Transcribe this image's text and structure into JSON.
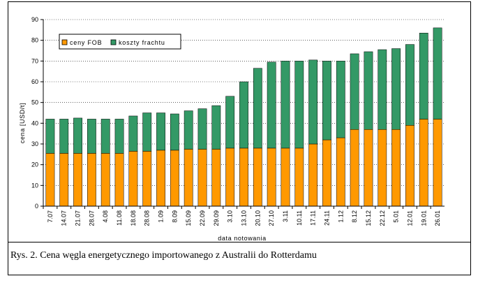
{
  "caption": "Rys. 2. Cena węgla energetycznego importowanego z Australii do Rotterdamu",
  "colors": {
    "fob": "#FF9900",
    "freight": "#339966",
    "grid": "#000000",
    "background": "#ffffff"
  },
  "chart_data": {
    "type": "bar",
    "stacked": true,
    "title": "",
    "xlabel": "data notowania",
    "ylabel": "cena [USD/t]",
    "ylim": [
      0,
      90
    ],
    "yticks": [
      0,
      10,
      20,
      30,
      40,
      50,
      60,
      70,
      80,
      90
    ],
    "grid": true,
    "legend_position": "top-left",
    "categories": [
      "7.07",
      "14.07",
      "21.07",
      "28.07",
      "4.08",
      "11.08",
      "18.08",
      "28.08",
      "1.09",
      "8.09",
      "15.09",
      "22.09",
      "29.09",
      "3.10",
      "13.10",
      "20.10",
      "27.10",
      "3.11",
      "10.11",
      "17.11",
      "24.11",
      "1.12",
      "8.12",
      "15.12",
      "22.12",
      "5.01",
      "12.01",
      "19.01",
      "26.01"
    ],
    "series": [
      {
        "name": "ceny FOB",
        "color": "#FF9900",
        "values": [
          25.5,
          25.5,
          25.5,
          25.5,
          25.5,
          25.5,
          26.5,
          26.5,
          27,
          27,
          27.5,
          27.5,
          27.5,
          28,
          28,
          28,
          28,
          28,
          28,
          30,
          32,
          33,
          37,
          37,
          37,
          37,
          39,
          42,
          42
        ]
      },
      {
        "name": "koszty frachtu",
        "color": "#339966",
        "values": [
          16.5,
          16.5,
          17,
          16.5,
          16.5,
          16.5,
          17,
          18.5,
          18,
          17.5,
          18.5,
          19.5,
          21,
          25,
          32,
          38.5,
          41.5,
          42,
          42,
          40.5,
          38,
          37,
          36.5,
          37.5,
          38.5,
          39,
          39,
          41.5,
          44
        ]
      }
    ]
  }
}
